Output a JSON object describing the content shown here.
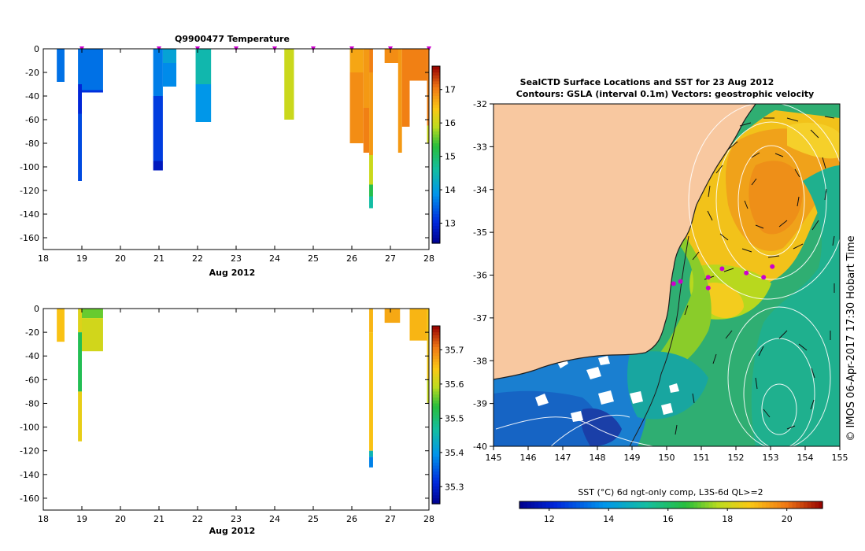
{
  "colors": {
    "land": "#f8c8a0",
    "axis": "#000000",
    "marker": "#cc00cc",
    "contour": "#ffffff",
    "vector": "#111111",
    "coast": "#1f1f1f",
    "cloud": "#ffffff"
  },
  "chart_data": [
    {
      "id": "temperature",
      "type": "heatmap",
      "title": "Q9900477  Temperature",
      "xlabel": "Aug 2012",
      "ylabel": "",
      "xlim": [
        18,
        28
      ],
      "ylim": [
        -170,
        0
      ],
      "xticks": [
        18,
        19,
        20,
        21,
        22,
        23,
        24,
        25,
        26,
        27,
        28
      ],
      "yticks": [
        0,
        -20,
        -40,
        -60,
        -80,
        -100,
        -120,
        -140,
        -160
      ],
      "profile_markers": [
        19.0,
        21.0,
        22.0,
        23.0,
        24.0,
        25.0,
        26.0,
        27.0,
        28.0
      ],
      "colorbar": {
        "range": [
          12.4,
          17.7
        ],
        "ticks": [
          13,
          14,
          15,
          16,
          17
        ]
      },
      "profiles": [
        {
          "x0": 18.35,
          "x1": 18.55,
          "segments": [
            [
              0,
              -28,
              13.6
            ]
          ]
        },
        {
          "x0": 18.9,
          "x1": 19.0,
          "segments": [
            [
              0,
              -30,
              13.6
            ],
            [
              -30,
              -55,
              13.0
            ],
            [
              -55,
              -112,
              13.3
            ]
          ]
        },
        {
          "x0": 19.0,
          "x1": 19.55,
          "segments": [
            [
              0,
              -35,
              13.6
            ],
            [
              -35,
              -37,
              13.1
            ]
          ]
        },
        {
          "x0": 20.85,
          "x1": 21.1,
          "segments": [
            [
              0,
              -40,
              13.7
            ],
            [
              -40,
              -95,
              13.2
            ],
            [
              -95,
              -103,
              12.8
            ]
          ]
        },
        {
          "x0": 21.1,
          "x1": 21.45,
          "segments": [
            [
              0,
              -12,
              14.1
            ],
            [
              -12,
              -32,
              13.8
            ]
          ]
        },
        {
          "x0": 21.95,
          "x1": 22.35,
          "segments": [
            [
              0,
              -30,
              14.5
            ],
            [
              -30,
              -62,
              13.9
            ]
          ]
        },
        {
          "x0": 24.25,
          "x1": 24.5,
          "segments": [
            [
              0,
              -60,
              16.0
            ]
          ]
        },
        {
          "x0": 25.95,
          "x1": 26.3,
          "segments": [
            [
              0,
              -20,
              16.7
            ],
            [
              -20,
              -80,
              16.9
            ]
          ]
        },
        {
          "x0": 26.3,
          "x1": 26.45,
          "segments": [
            [
              0,
              -50,
              16.8
            ],
            [
              -50,
              -88,
              17.0
            ]
          ]
        },
        {
          "x0": 26.45,
          "x1": 26.55,
          "segments": [
            [
              0,
              -20,
              17.0
            ],
            [
              -20,
              -90,
              16.8
            ],
            [
              -90,
              -115,
              16.0
            ],
            [
              -115,
              -125,
              15.2
            ],
            [
              -125,
              -135,
              14.6
            ]
          ]
        },
        {
          "x0": 26.85,
          "x1": 27.25,
          "segments": [
            [
              0,
              -12,
              16.9
            ]
          ]
        },
        {
          "x0": 27.2,
          "x1": 27.3,
          "segments": [
            [
              0,
              -88,
              16.8
            ]
          ]
        },
        {
          "x0": 27.3,
          "x1": 27.5,
          "segments": [
            [
              0,
              -66,
              17.0
            ]
          ]
        },
        {
          "x0": 27.5,
          "x1": 27.95,
          "segments": [
            [
              0,
              -27,
              17.0
            ]
          ]
        },
        {
          "x0": 27.95,
          "x1": 28.05,
          "segments": [
            [
              0,
              -65,
              17.0
            ],
            [
              -65,
              -80,
              16.0
            ]
          ]
        }
      ]
    },
    {
      "id": "salinity",
      "type": "heatmap",
      "title": "",
      "xlabel": "Aug 2012",
      "ylabel": "",
      "xlim": [
        18,
        28
      ],
      "ylim": [
        -170,
        0
      ],
      "xticks": [
        18,
        19,
        20,
        21,
        22,
        23,
        24,
        25,
        26,
        27,
        28
      ],
      "yticks": [
        0,
        -20,
        -40,
        -60,
        -80,
        -100,
        -120,
        -140,
        -160
      ],
      "colorbar": {
        "range": [
          35.25,
          35.77
        ],
        "ticks": [
          35.3,
          35.4,
          35.5,
          35.6,
          35.7
        ]
      },
      "profiles": [
        {
          "x0": 18.35,
          "x1": 18.55,
          "segments": [
            [
              0,
              -28,
              35.65
            ]
          ]
        },
        {
          "x0": 18.9,
          "x1": 19.0,
          "segments": [
            [
              0,
              -20,
              35.62
            ],
            [
              -20,
              -70,
              35.52
            ],
            [
              -70,
              -112,
              35.63
            ]
          ]
        },
        {
          "x0": 19.0,
          "x1": 19.55,
          "segments": [
            [
              0,
              -8,
              35.56
            ],
            [
              -8,
              -36,
              35.61
            ]
          ]
        },
        {
          "x0": 26.45,
          "x1": 26.55,
          "segments": [
            [
              0,
              -20,
              35.66
            ],
            [
              -20,
              -120,
              35.65
            ],
            [
              -120,
              -125,
              35.45
            ],
            [
              -125,
              -134,
              35.38
            ]
          ]
        },
        {
          "x0": 26.85,
          "x1": 27.25,
          "segments": [
            [
              0,
              -12,
              35.67
            ]
          ]
        },
        {
          "x0": 27.5,
          "x1": 27.95,
          "segments": [
            [
              0,
              -27,
              35.66
            ]
          ]
        },
        {
          "x0": 27.95,
          "x1": 28.05,
          "segments": [
            [
              0,
              -60,
              35.64
            ],
            [
              -60,
              -80,
              35.6
            ]
          ]
        }
      ]
    },
    {
      "id": "sst-map",
      "type": "heatmap",
      "title": "SealCTD Surface Locations and SST for 23 Aug 2012",
      "subtitle": "Contours: GSLA (interval 0.1m) Vectors: geostrophic velocity",
      "xlabel": "",
      "xlim": [
        145,
        155
      ],
      "ylim": [
        -40,
        -32
      ],
      "xticks": [
        145,
        146,
        147,
        148,
        149,
        150,
        151,
        152,
        153,
        154,
        155
      ],
      "yticks": [
        -32,
        -33,
        -34,
        -35,
        -36,
        -37,
        -38,
        -39,
        -40
      ],
      "side_label": "© IMOS 06-Apr-2017 17:30 Hobart Time",
      "colorbar": {
        "label": "SST (°C) 6d ngt-only comp, L3S-6d QL>=2",
        "range": [
          11,
          21.2
        ],
        "ticks": [
          12,
          14,
          16,
          18,
          20
        ]
      },
      "ctd_locations": [
        [
          150.2,
          -36.2
        ],
        [
          150.4,
          -36.15
        ],
        [
          151.2,
          -36.05
        ],
        [
          151.2,
          -36.3
        ],
        [
          151.6,
          -35.85
        ],
        [
          152.3,
          -35.95
        ],
        [
          152.8,
          -36.05
        ],
        [
          153.05,
          -35.8
        ]
      ]
    }
  ]
}
